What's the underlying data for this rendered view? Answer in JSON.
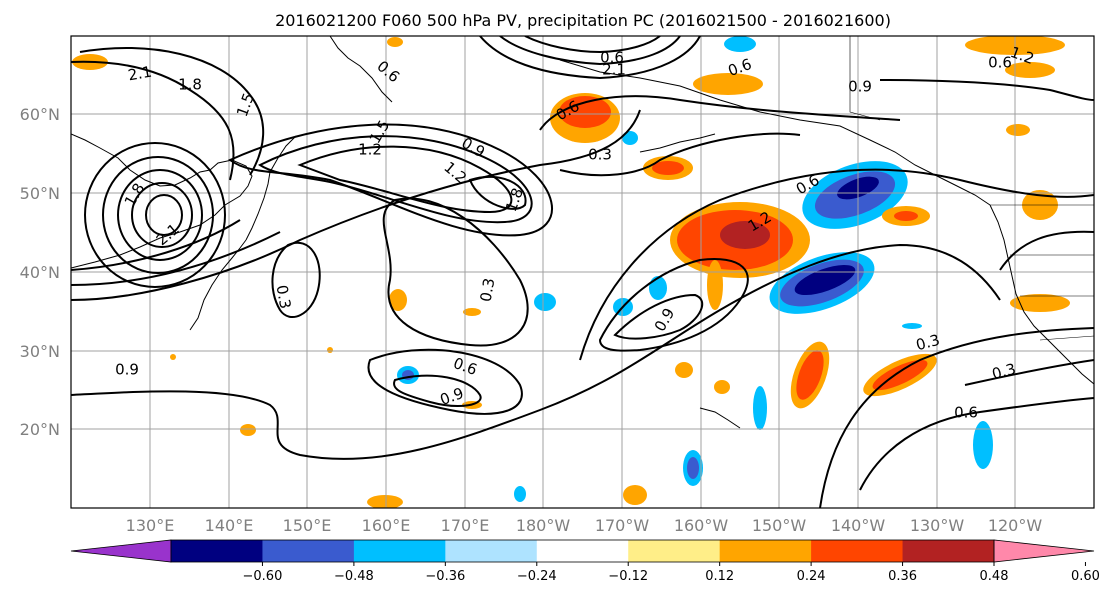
{
  "title": "2016021200 F060 500 hPa PV, precipitation PC (2016021500 - 2016021600)",
  "axes": {
    "lat_labels": [
      "60°N",
      "50°N",
      "40°N",
      "30°N",
      "20°N"
    ],
    "lon_labels": [
      "130°E",
      "140°E",
      "150°E",
      "160°E",
      "170°E",
      "180°W",
      "170°W",
      "160°W",
      "150°W",
      "140°W",
      "130°W",
      "120°W"
    ]
  },
  "colorbar": {
    "colors": [
      "#9933cc",
      "#000080",
      "#3a5bcf",
      "#00bfff",
      "#aee3ff",
      "#ffffff",
      "#ffee88",
      "#ffa500",
      "#ff4500",
      "#b22222",
      "#ff88aa"
    ],
    "ticks": [
      "−0.60",
      "−0.48",
      "−0.36",
      "−0.24",
      "−0.12",
      "0.12",
      "0.24",
      "0.36",
      "0.48",
      "0.60"
    ]
  },
  "contour_labels": [
    "2.1",
    "1.8",
    "1.5",
    "1.8",
    "2.1",
    "0.6",
    "0.9",
    "1.2",
    "1.5",
    "1.2",
    "1.8",
    "0.3",
    "0.3",
    "0.6",
    "0.9",
    "0.6",
    "0.3",
    "0.9",
    "1.2",
    "0.6",
    "0.9",
    "0.6",
    "0.6",
    "2.1",
    "1.2",
    "0.3",
    "0.3",
    "0.6",
    "0.9",
    "0.6"
  ],
  "chart_data": {
    "type": "heatmap",
    "title": "2016021200 F060 500 hPa PV, precipitation PC (2016021500 - 2016021600)",
    "fields": [
      "500 hPa PV (contours)",
      "precipitation PC (shaded)"
    ],
    "lat_range": [
      10,
      70
    ],
    "lon_range": [
      120,
      250
    ],
    "color_levels": [
      -0.6,
      -0.48,
      -0.36,
      -0.24,
      -0.12,
      0.12,
      0.24,
      0.36,
      0.48,
      0.6
    ],
    "contour_levels": [
      0.3,
      0.6,
      0.9,
      1.2,
      1.5,
      1.8,
      2.1
    ],
    "grid": true
  }
}
